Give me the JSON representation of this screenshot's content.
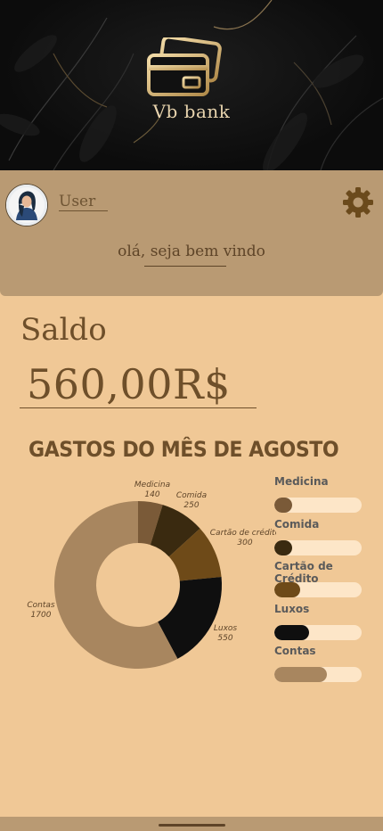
{
  "header": {
    "brand": "Vb bank",
    "logo_icon": "credit-cards-icon"
  },
  "profile": {
    "username": "User",
    "welcome": "olá, seja bem vindo",
    "avatar_icon": "avatar",
    "settings_icon": "gear-icon"
  },
  "balance": {
    "label": "Saldo",
    "value": "560,00R$"
  },
  "spending": {
    "title": "GASTOS DO MÊS DE AGOSTO"
  },
  "chart_data": {
    "type": "pie",
    "title": "GASTOS DO MÊS DE AGOSTO",
    "categories": [
      "Medicina",
      "Comida",
      "Cartão de crédito",
      "Luxos",
      "Contas"
    ],
    "values": [
      140,
      250,
      300,
      550,
      1700
    ],
    "colors": [
      "#7a5a38",
      "#3a2a10",
      "#6e4a18",
      "#0f0f0f",
      "#a8865f"
    ]
  },
  "categories": [
    {
      "name": "Medicina",
      "fill": 0.2,
      "color": "#7a5a38"
    },
    {
      "name": "Comida",
      "fill": 0.2,
      "color": "#3a2a10"
    },
    {
      "name": "Cartão de Crédito",
      "fill": 0.3,
      "color": "#6e4a18"
    },
    {
      "name": "Luxos",
      "fill": 0.4,
      "color": "#0f0f0f"
    },
    {
      "name": "Contas",
      "fill": 0.6,
      "color": "#a8865f"
    }
  ]
}
